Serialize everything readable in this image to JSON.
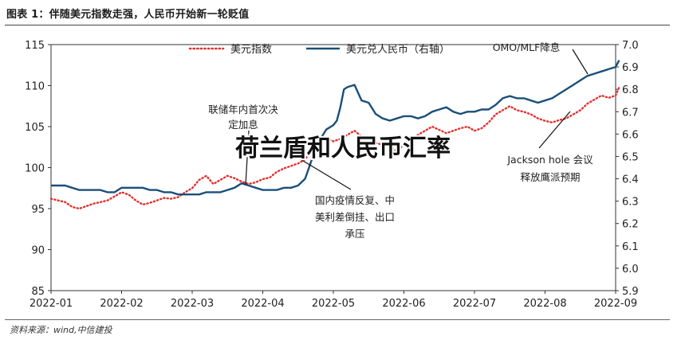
{
  "figure_title": "图表 1：伴随美元指数走强，人民币开始新一轮贬值",
  "source_note": "资料来源：wind,中信建投",
  "overlay_text": "荷兰盾和人民币汇率",
  "colors": {
    "usd_index": "#e53030",
    "usdcny": "#1a4f7a",
    "axis": "#333333"
  },
  "chart_data": {
    "type": "line",
    "x_tick_labels": [
      "2022-01",
      "2022-02",
      "2022-03",
      "2022-04",
      "2022-05",
      "2022-06",
      "2022-07",
      "2022-08",
      "2022-09"
    ],
    "x_range": [
      0,
      8
    ],
    "y_left": {
      "range": [
        85,
        115
      ],
      "ticks": [
        "85",
        "90",
        "95",
        "100",
        "105",
        "110",
        "115"
      ]
    },
    "y_right": {
      "range": [
        5.9,
        7.0
      ],
      "ticks": [
        "5.9",
        "6.0",
        "6.1",
        "6.2",
        "6.3",
        "6.4",
        "6.5",
        "6.6",
        "6.7",
        "6.8",
        "6.9",
        "7.0"
      ]
    },
    "legend_position": "top",
    "series": [
      {
        "name": "美元指数",
        "axis": "left",
        "style": "dotted",
        "points": [
          [
            0,
            96.2
          ],
          [
            0.1,
            96.0
          ],
          [
            0.2,
            95.8
          ],
          [
            0.3,
            95.2
          ],
          [
            0.4,
            95.0
          ],
          [
            0.5,
            95.3
          ],
          [
            0.6,
            95.6
          ],
          [
            0.7,
            95.8
          ],
          [
            0.8,
            96.0
          ],
          [
            0.9,
            96.5
          ],
          [
            1.0,
            97.0
          ],
          [
            1.1,
            96.7
          ],
          [
            1.2,
            96.0
          ],
          [
            1.3,
            95.5
          ],
          [
            1.4,
            95.7
          ],
          [
            1.5,
            96.0
          ],
          [
            1.6,
            96.3
          ],
          [
            1.7,
            96.2
          ],
          [
            1.8,
            96.4
          ],
          [
            1.9,
            97.0
          ],
          [
            2.0,
            97.5
          ],
          [
            2.1,
            98.5
          ],
          [
            2.2,
            99.0
          ],
          [
            2.3,
            98.0
          ],
          [
            2.4,
            98.5
          ],
          [
            2.5,
            99.0
          ],
          [
            2.6,
            98.7
          ],
          [
            2.7,
            98.3
          ],
          [
            2.8,
            98.0
          ],
          [
            2.9,
            98.2
          ],
          [
            3.0,
            98.6
          ],
          [
            3.1,
            98.8
          ],
          [
            3.2,
            99.5
          ],
          [
            3.3,
            99.9
          ],
          [
            3.4,
            100.2
          ],
          [
            3.5,
            100.5
          ],
          [
            3.6,
            101.0
          ],
          [
            3.7,
            102.0
          ],
          [
            3.8,
            103.0
          ],
          [
            3.9,
            103.6
          ],
          [
            4.0,
            103.2
          ],
          [
            4.1,
            103.5
          ],
          [
            4.2,
            104.0
          ],
          [
            4.3,
            104.5
          ],
          [
            4.4,
            103.8
          ],
          [
            4.5,
            103.5
          ],
          [
            4.6,
            103.0
          ],
          [
            4.7,
            102.8
          ],
          [
            4.8,
            102.5
          ],
          [
            4.9,
            102.0
          ],
          [
            5.0,
            102.8
          ],
          [
            5.1,
            103.5
          ],
          [
            5.2,
            104.0
          ],
          [
            5.3,
            104.5
          ],
          [
            5.4,
            105.0
          ],
          [
            5.5,
            104.6
          ],
          [
            5.6,
            104.2
          ],
          [
            5.7,
            104.5
          ],
          [
            5.8,
            104.8
          ],
          [
            5.9,
            105.0
          ],
          [
            6.0,
            104.5
          ],
          [
            6.1,
            104.8
          ],
          [
            6.2,
            105.5
          ],
          [
            6.3,
            106.5
          ],
          [
            6.4,
            107.0
          ],
          [
            6.5,
            107.5
          ],
          [
            6.6,
            107.0
          ],
          [
            6.7,
            106.8
          ],
          [
            6.8,
            106.5
          ],
          [
            6.9,
            106.0
          ],
          [
            7.0,
            105.7
          ],
          [
            7.1,
            105.5
          ],
          [
            7.2,
            105.8
          ],
          [
            7.3,
            106.0
          ],
          [
            7.4,
            106.5
          ],
          [
            7.5,
            107.0
          ],
          [
            7.6,
            107.8
          ],
          [
            7.7,
            108.3
          ],
          [
            7.8,
            108.8
          ],
          [
            7.9,
            108.5
          ],
          [
            8.0,
            108.8
          ],
          [
            8.05,
            109.8
          ]
        ]
      },
      {
        "name": "美元兑人民币（右轴）",
        "axis": "right",
        "style": "solid",
        "points": [
          [
            0,
            6.37
          ],
          [
            0.1,
            6.37
          ],
          [
            0.2,
            6.37
          ],
          [
            0.3,
            6.36
          ],
          [
            0.4,
            6.35
          ],
          [
            0.5,
            6.35
          ],
          [
            0.6,
            6.35
          ],
          [
            0.7,
            6.35
          ],
          [
            0.8,
            6.34
          ],
          [
            0.9,
            6.34
          ],
          [
            1.0,
            6.36
          ],
          [
            1.1,
            6.36
          ],
          [
            1.2,
            6.36
          ],
          [
            1.3,
            6.36
          ],
          [
            1.4,
            6.35
          ],
          [
            1.5,
            6.35
          ],
          [
            1.6,
            6.34
          ],
          [
            1.7,
            6.34
          ],
          [
            1.8,
            6.33
          ],
          [
            1.9,
            6.33
          ],
          [
            2.0,
            6.33
          ],
          [
            2.1,
            6.33
          ],
          [
            2.2,
            6.34
          ],
          [
            2.3,
            6.34
          ],
          [
            2.4,
            6.34
          ],
          [
            2.5,
            6.35
          ],
          [
            2.6,
            6.36
          ],
          [
            2.7,
            6.38
          ],
          [
            2.8,
            6.37
          ],
          [
            2.9,
            6.36
          ],
          [
            3.0,
            6.35
          ],
          [
            3.1,
            6.35
          ],
          [
            3.2,
            6.35
          ],
          [
            3.3,
            6.36
          ],
          [
            3.4,
            6.36
          ],
          [
            3.5,
            6.37
          ],
          [
            3.6,
            6.4
          ],
          [
            3.7,
            6.49
          ],
          [
            3.8,
            6.57
          ],
          [
            3.9,
            6.62
          ],
          [
            4.0,
            6.64
          ],
          [
            4.05,
            6.66
          ],
          [
            4.1,
            6.72
          ],
          [
            4.15,
            6.8
          ],
          [
            4.2,
            6.81
          ],
          [
            4.3,
            6.82
          ],
          [
            4.4,
            6.75
          ],
          [
            4.5,
            6.74
          ],
          [
            4.6,
            6.69
          ],
          [
            4.7,
            6.67
          ],
          [
            4.8,
            6.66
          ],
          [
            4.9,
            6.67
          ],
          [
            5.0,
            6.68
          ],
          [
            5.1,
            6.68
          ],
          [
            5.2,
            6.67
          ],
          [
            5.3,
            6.68
          ],
          [
            5.4,
            6.7
          ],
          [
            5.5,
            6.71
          ],
          [
            5.6,
            6.72
          ],
          [
            5.7,
            6.7
          ],
          [
            5.8,
            6.69
          ],
          [
            5.9,
            6.7
          ],
          [
            6.0,
            6.7
          ],
          [
            6.1,
            6.71
          ],
          [
            6.2,
            6.71
          ],
          [
            6.3,
            6.73
          ],
          [
            6.4,
            6.76
          ],
          [
            6.5,
            6.77
          ],
          [
            6.6,
            6.76
          ],
          [
            6.7,
            6.76
          ],
          [
            6.8,
            6.75
          ],
          [
            6.9,
            6.74
          ],
          [
            7.0,
            6.75
          ],
          [
            7.1,
            6.76
          ],
          [
            7.2,
            6.78
          ],
          [
            7.3,
            6.8
          ],
          [
            7.4,
            6.82
          ],
          [
            7.5,
            6.84
          ],
          [
            7.6,
            6.86
          ],
          [
            7.7,
            6.87
          ],
          [
            7.8,
            6.88
          ],
          [
            7.9,
            6.89
          ],
          [
            8.0,
            6.9
          ],
          [
            8.05,
            6.93
          ]
        ]
      }
    ],
    "annotations": [
      {
        "id": "ann-rate-hike",
        "lines": [
          "联储年内首次决",
          "定加息"
        ]
      },
      {
        "id": "ann-epidemic",
        "lines": [
          "国内疫情反复、中",
          "美利差倒挂、出口",
          "承压"
        ]
      },
      {
        "id": "ann-jackson",
        "lines": [
          "Jackson hole 会议",
          "释放鹰派预期"
        ]
      },
      {
        "id": "ann-omo",
        "lines": [
          "OMO/MLF降息"
        ]
      }
    ]
  }
}
